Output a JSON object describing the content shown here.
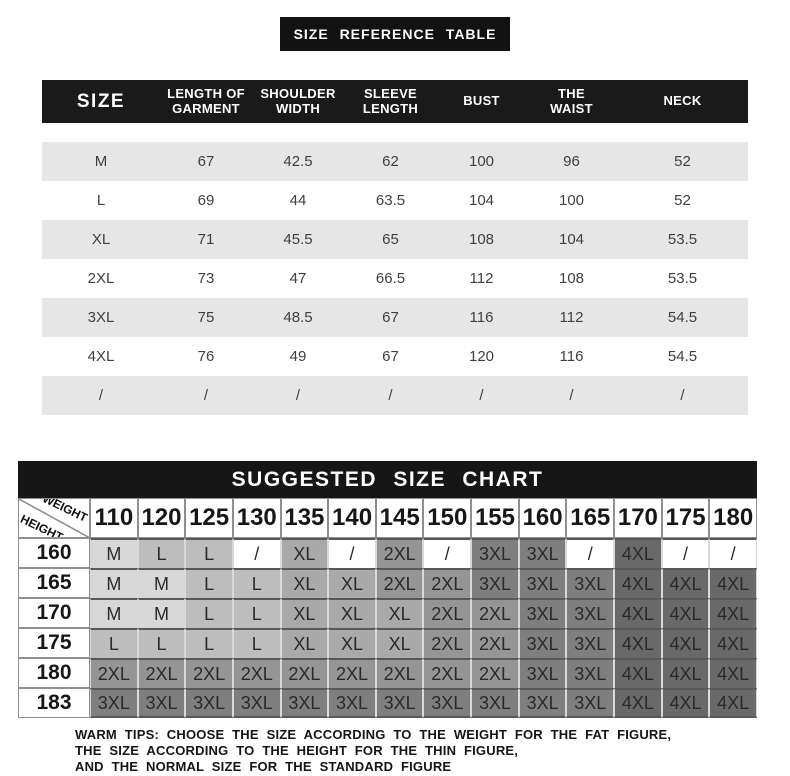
{
  "chart_data": [
    {
      "type": "table",
      "title": "SIZE REFERENCE TABLE",
      "columns": [
        [
          "SIZE"
        ],
        [
          "LENGTH OF",
          "GARMENT"
        ],
        [
          "SHOULDER",
          "WIDTH"
        ],
        [
          "SLEEVE",
          "LENGTH"
        ],
        [
          "BUST"
        ],
        [
          "THE",
          "WAIST"
        ],
        [
          "NECK"
        ]
      ],
      "rows": [
        [
          "M",
          "67",
          "42.5",
          "62",
          "100",
          "96",
          "52"
        ],
        [
          "L",
          "69",
          "44",
          "63.5",
          "104",
          "100",
          "52"
        ],
        [
          "XL",
          "71",
          "45.5",
          "65",
          "108",
          "104",
          "53.5"
        ],
        [
          "2XL",
          "73",
          "47",
          "66.5",
          "112",
          "108",
          "53.5"
        ],
        [
          "3XL",
          "75",
          "48.5",
          "67",
          "116",
          "112",
          "54.5"
        ],
        [
          "4XL",
          "76",
          "49",
          "67",
          "120",
          "116",
          "54.5"
        ],
        [
          "/",
          "/",
          "/",
          "/",
          "/",
          "/",
          "/"
        ]
      ]
    },
    {
      "type": "table",
      "title": "SUGGESTED SIZE CHART",
      "corner": {
        "top_right": "WEIGHT",
        "bottom_left": "HEIGHT"
      },
      "weights": [
        "110",
        "120",
        "125",
        "130",
        "135",
        "140",
        "145",
        "150",
        "155",
        "160",
        "165",
        "170",
        "175",
        "180"
      ],
      "rows": [
        {
          "height": "160",
          "sizes": [
            "M",
            "L",
            "L",
            "/",
            "XL",
            "/",
            "2XL",
            "/",
            "3XL",
            "3XL",
            "/",
            "4XL",
            "/",
            "/"
          ]
        },
        {
          "height": "165",
          "sizes": [
            "M",
            "M",
            "L",
            "L",
            "XL",
            "XL",
            "2XL",
            "2XL",
            "3XL",
            "3XL",
            "3XL",
            "4XL",
            "4XL",
            "4XL"
          ]
        },
        {
          "height": "170",
          "sizes": [
            "M",
            "M",
            "L",
            "L",
            "XL",
            "XL",
            "XL",
            "2XL",
            "2XL",
            "3XL",
            "3XL",
            "4XL",
            "4XL",
            "4XL"
          ]
        },
        {
          "height": "175",
          "sizes": [
            "L",
            "L",
            "L",
            "L",
            "XL",
            "XL",
            "XL",
            "2XL",
            "2XL",
            "3XL",
            "3XL",
            "4XL",
            "4XL",
            "4XL"
          ]
        },
        {
          "height": "180",
          "sizes": [
            "2XL",
            "2XL",
            "2XL",
            "2XL",
            "2XL",
            "2XL",
            "2XL",
            "2XL",
            "2XL",
            "3XL",
            "3XL",
            "4XL",
            "4XL",
            "4XL"
          ]
        },
        {
          "height": "183",
          "sizes": [
            "3XL",
            "3XL",
            "3XL",
            "3XL",
            "3XL",
            "3XL",
            "3XL",
            "3XL",
            "3XL",
            "3XL",
            "3XL",
            "4XL",
            "4XL",
            "4XL"
          ]
        }
      ],
      "size_colors": {
        "M": "#d7d7d7",
        "L": "#bdbdbd",
        "XL": "#a9a9a9",
        "2XL": "#959595",
        "3XL": "#7f7f7f",
        "4XL": "#696969",
        "/": "#ffffff"
      }
    }
  ],
  "warm_tips": {
    "lines": [
      "WARM TIPS: CHOOSE THE SIZE ACCORDING TO THE WEIGHT FOR THE FAT FIGURE,",
      "THE SIZE ACCORDING TO THE HEIGHT FOR THE THIN FIGURE,",
      "AND THE NORMAL SIZE FOR THE STANDARD FIGURE"
    ]
  },
  "colors": {
    "title_bar": "#161616",
    "header_bar": "#1a1a1a",
    "row_stripe": "#e6e6e6",
    "grid_dark_line": "#585858",
    "grid_light_line": "#d9d9d9"
  }
}
